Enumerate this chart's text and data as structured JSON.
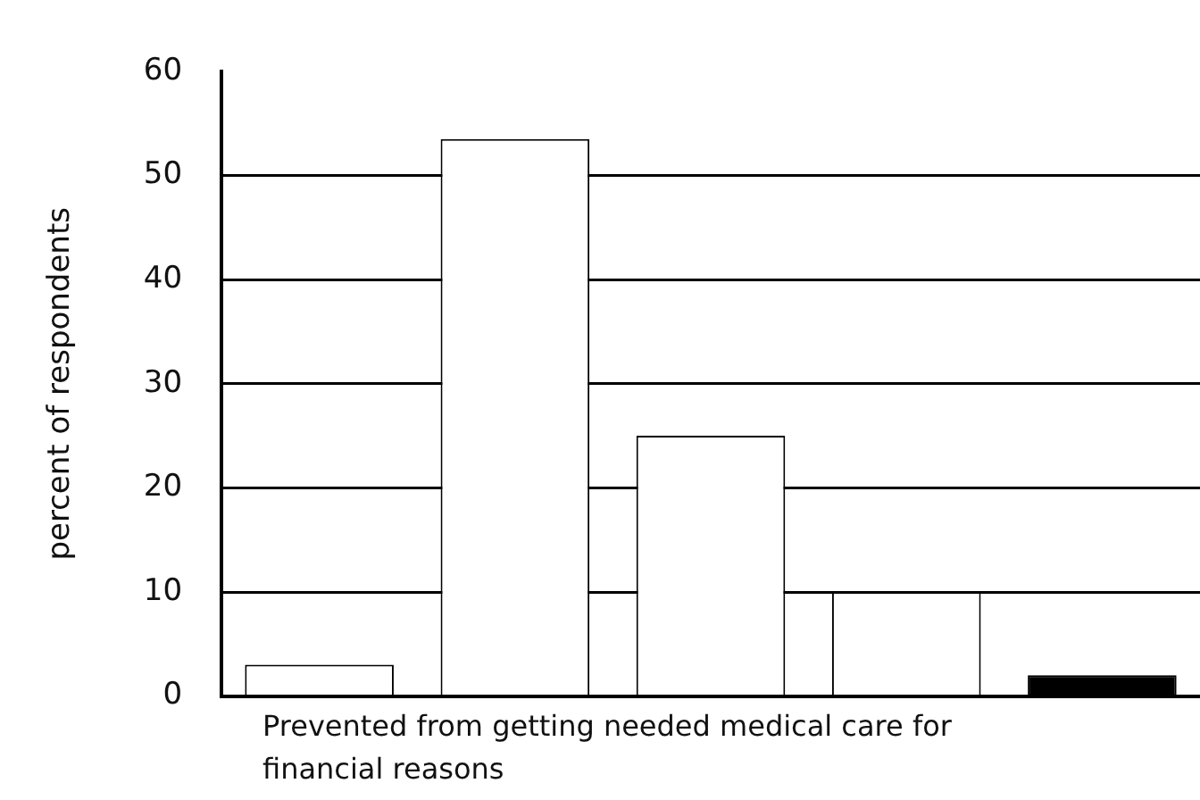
{
  "chart_data": {
    "type": "bar",
    "xlabel": "Prevented from getting needed medical care for financial reasons",
    "ylabel": "percent of respondents",
    "categories": [
      null,
      null,
      null,
      null,
      null
    ],
    "values": [
      3,
      53.5,
      25,
      10,
      2
    ],
    "colors": [
      "#ffffff",
      "#ffffff",
      "#ffffff",
      "#ffffff",
      "#000000"
    ],
    "ylim": [
      0,
      60
    ],
    "yticks": [
      0,
      10,
      20,
      30,
      40,
      50,
      60
    ],
    "grid": "y",
    "legend": false
  }
}
